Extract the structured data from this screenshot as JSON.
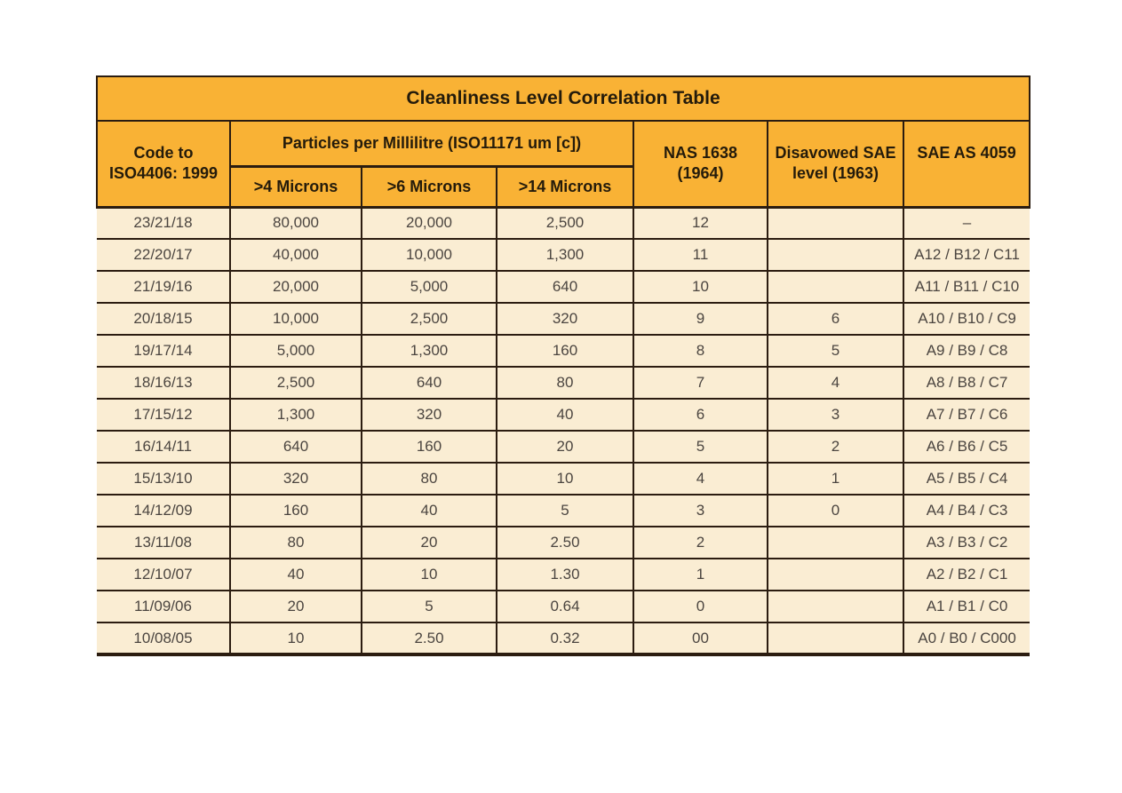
{
  "table": {
    "title": "Cleanliness Level Correlation Table",
    "colors": {
      "header_bg": "#f9b235",
      "body_bg": "#faedd3",
      "border": "#2b1c10",
      "header_text": "#241b0b",
      "body_text": "#4b4540"
    },
    "headers": {
      "code": {
        "line1": "Code to",
        "line2": "ISO4406: 1999"
      },
      "particles_group": "Particles per Millilitre (ISO11171 um [c])",
      "microns": [
        ">4 Microns",
        ">6 Microns",
        ">14 Microns"
      ],
      "nas": {
        "line1": "NAS 1638",
        "line2": "(1964)"
      },
      "sae_level": {
        "line1": "Disavowed SAE",
        "line2": "level (1963)"
      },
      "sae_as": "SAE AS 4059"
    },
    "column_names": [
      "iso-code",
      "particles-4um",
      "particles-6um",
      "particles-14um",
      "nas-1638",
      "sae-level",
      "sae-as-4059"
    ],
    "rows": [
      [
        "23/21/18",
        "80,000",
        "20,000",
        "2,500",
        "12",
        "",
        "–"
      ],
      [
        "22/20/17",
        "40,000",
        "10,000",
        "1,300",
        "11",
        "",
        "A12 / B12 / C11"
      ],
      [
        "21/19/16",
        "20,000",
        "5,000",
        "640",
        "10",
        "",
        "A11 / B11 / C10"
      ],
      [
        "20/18/15",
        "10,000",
        "2,500",
        "320",
        "9",
        "6",
        "A10 / B10 / C9"
      ],
      [
        "19/17/14",
        "5,000",
        "1,300",
        "160",
        "8",
        "5",
        "A9 / B9 / C8"
      ],
      [
        "18/16/13",
        "2,500",
        "640",
        "80",
        "7",
        "4",
        "A8 / B8 / C7"
      ],
      [
        "17/15/12",
        "1,300",
        "320",
        "40",
        "6",
        "3",
        "A7 / B7 / C6"
      ],
      [
        "16/14/11",
        "640",
        "160",
        "20",
        "5",
        "2",
        "A6 / B6 / C5"
      ],
      [
        "15/13/10",
        "320",
        "80",
        "10",
        "4",
        "1",
        "A5 / B5 / C4"
      ],
      [
        "14/12/09",
        "160",
        "40",
        "5",
        "3",
        "0",
        "A4 / B4 / C3"
      ],
      [
        "13/11/08",
        "80",
        "20",
        "2.50",
        "2",
        "",
        "A3 / B3 / C2"
      ],
      [
        "12/10/07",
        "40",
        "10",
        "1.30",
        "1",
        "",
        "A2 / B2 / C1"
      ],
      [
        "11/09/06",
        "20",
        "5",
        "0.64",
        "0",
        "",
        "A1 / B1 / C0"
      ],
      [
        "10/08/05",
        "10",
        "2.50",
        "0.32",
        "00",
        "",
        "A0 / B0 / C000"
      ]
    ]
  }
}
